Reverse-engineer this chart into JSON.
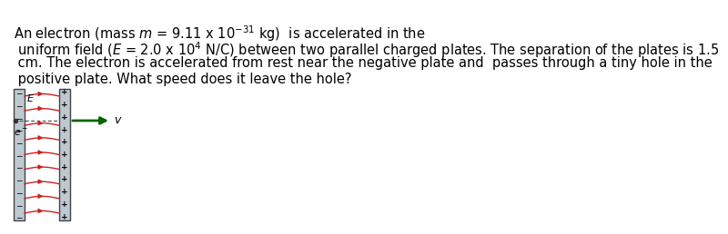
{
  "text_line1": "An electron (mass $m$ = 9.11 x 10$^{-31}$ kg)  is accelerated in the",
  "text_line2": " uniform field ($E$ = 2.0 x 10$^{4}$ N/C) between two parallel charged plates. The separation of the plates is 1.5",
  "text_line3": " cm. The electron is accelerated from rest near the negative plate and  passes through a tiny hole in the",
  "text_line4": " positive plate. What speed does it leave the hole?",
  "fontsize": 10.5,
  "left_plate_color": "#bec8d0",
  "right_plate_color": "#bec8d0",
  "plate_border_color": "#444444",
  "red_line_color": "#cc2222",
  "arrow_color": "#006600",
  "dashed_color": "#555555",
  "background_color": "#ffffff",
  "n_field_lines": 9,
  "n_plus_minus": 11
}
